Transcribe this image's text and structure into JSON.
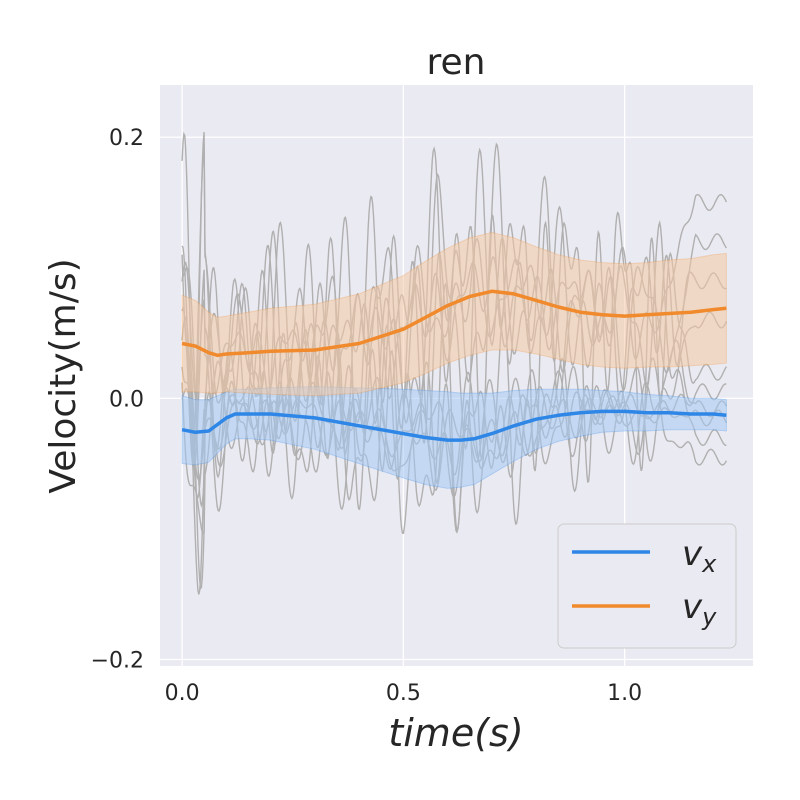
{
  "chart_data": {
    "type": "line",
    "title": "ren",
    "xlabel": "time(s)",
    "ylabel": "Velocity(m/s)",
    "xlim": [
      -0.05,
      1.29
    ],
    "ylim": [
      -0.205,
      0.24
    ],
    "x_ticks": [
      0.0,
      0.5,
      1.0
    ],
    "x_tick_labels": [
      "0.0",
      "0.5",
      "1.0"
    ],
    "y_ticks": [
      -0.2,
      0.0,
      0.2
    ],
    "y_tick_labels": [
      "−0.2",
      "0.0",
      "0.2"
    ],
    "grid": true,
    "legend_position": "lower-right",
    "background_color": "#eaeaf2",
    "series": [
      {
        "name": "v_x",
        "legend_main": "v",
        "legend_sub": "x",
        "color": "#2e86e6",
        "band_color": "#a4c8f4",
        "x": [
          0.0,
          0.03,
          0.06,
          0.08,
          0.1,
          0.12,
          0.15,
          0.2,
          0.3,
          0.4,
          0.5,
          0.55,
          0.6,
          0.63,
          0.66,
          0.7,
          0.75,
          0.8,
          0.85,
          0.9,
          0.95,
          1.0,
          1.05,
          1.1,
          1.15,
          1.2,
          1.23
        ],
        "mean": [
          -0.024,
          -0.026,
          -0.025,
          -0.02,
          -0.015,
          -0.012,
          -0.012,
          -0.012,
          -0.015,
          -0.021,
          -0.027,
          -0.03,
          -0.032,
          -0.032,
          -0.031,
          -0.027,
          -0.021,
          -0.016,
          -0.013,
          -0.011,
          -0.01,
          -0.01,
          -0.011,
          -0.011,
          -0.012,
          -0.012,
          -0.013
        ],
        "std": [
          0.026,
          0.025,
          0.024,
          0.022,
          0.02,
          0.019,
          0.019,
          0.02,
          0.024,
          0.029,
          0.034,
          0.036,
          0.037,
          0.036,
          0.035,
          0.031,
          0.027,
          0.023,
          0.02,
          0.018,
          0.016,
          0.015,
          0.014,
          0.013,
          0.012,
          0.012,
          0.012
        ]
      },
      {
        "name": "v_y",
        "legend_main": "v",
        "legend_sub": "y",
        "color": "#f08a2c",
        "band_color": "#f4c9a4",
        "x": [
          0.0,
          0.03,
          0.06,
          0.08,
          0.1,
          0.15,
          0.2,
          0.3,
          0.4,
          0.5,
          0.55,
          0.6,
          0.65,
          0.7,
          0.75,
          0.8,
          0.85,
          0.9,
          0.95,
          1.0,
          1.05,
          1.1,
          1.15,
          1.2,
          1.23
        ],
        "mean": [
          0.042,
          0.04,
          0.035,
          0.033,
          0.034,
          0.035,
          0.036,
          0.037,
          0.042,
          0.053,
          0.062,
          0.071,
          0.078,
          0.082,
          0.08,
          0.075,
          0.07,
          0.066,
          0.064,
          0.063,
          0.064,
          0.065,
          0.066,
          0.068,
          0.069
        ],
        "std": [
          0.037,
          0.035,
          0.031,
          0.029,
          0.029,
          0.031,
          0.033,
          0.035,
          0.038,
          0.041,
          0.043,
          0.044,
          0.045,
          0.045,
          0.043,
          0.041,
          0.04,
          0.04,
          0.04,
          0.04,
          0.04,
          0.041,
          0.041,
          0.042,
          0.042
        ]
      }
    ],
    "trials": {
      "color": "#b0b0b0",
      "x_end": 1.23,
      "final_values": [
        0.15,
        0.12,
        0.09,
        0.06,
        0.02,
        0.005,
        -0.008,
        -0.015,
        -0.03,
        -0.045
      ]
    }
  }
}
